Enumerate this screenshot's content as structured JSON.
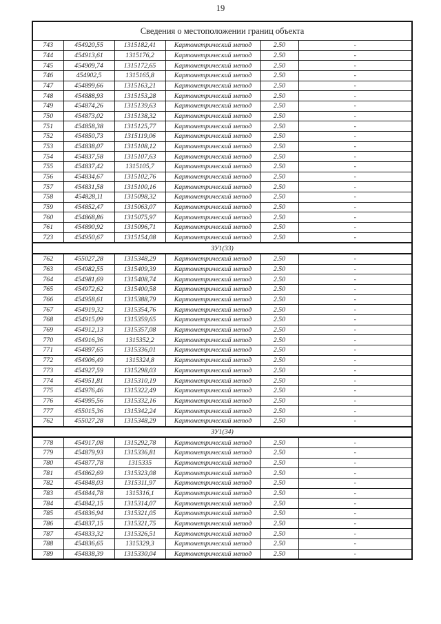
{
  "page": {
    "number": "19"
  },
  "table": {
    "title": "Сведения о местоположении границ объекта",
    "defaults": {
      "method": "Картометрический метод",
      "accuracy": "2.50",
      "description": "-"
    },
    "rows": [
      [
        "743",
        "454920,55",
        "1315182,41"
      ],
      [
        "744",
        "454913,61",
        "1315176,2"
      ],
      [
        "745",
        "454909,74",
        "1315172,65"
      ],
      [
        "746",
        "454902,5",
        "1315165,8"
      ],
      [
        "747",
        "454899,66",
        "1315163,21"
      ],
      [
        "748",
        "454888,93",
        "1315153,28"
      ],
      [
        "749",
        "454874,26",
        "1315139,63"
      ],
      [
        "750",
        "454873,02",
        "1315138,32"
      ],
      [
        "751",
        "454858,38",
        "1315125,77"
      ],
      [
        "752",
        "454850,73",
        "1315119,06"
      ],
      [
        "753",
        "454838,07",
        "1315108,12"
      ],
      [
        "754",
        "454837,58",
        "1315107,63"
      ],
      [
        "755",
        "454837,42",
        "1315105,7"
      ],
      [
        "756",
        "454834,67",
        "1315102,76"
      ],
      [
        "757",
        "454831,58",
        "1315100,16"
      ],
      [
        "758",
        "454828,11",
        "1315098,32"
      ],
      [
        "759",
        "454852,47",
        "1315063,07"
      ],
      [
        "760",
        "454868,86",
        "1315075,97"
      ],
      [
        "761",
        "454890,92",
        "1315096,71"
      ],
      [
        "723",
        "454950,67",
        "1315154,08"
      ],
      {
        "section": "ЗУ1(33)"
      },
      [
        "762",
        "455027,28",
        "1315348,29"
      ],
      [
        "763",
        "454982,55",
        "1315409,39"
      ],
      [
        "764",
        "454981,69",
        "1315408,74"
      ],
      [
        "765",
        "454972,62",
        "1315400,58"
      ],
      [
        "766",
        "454958,61",
        "1315388,79"
      ],
      [
        "767",
        "454919,32",
        "1315354,76"
      ],
      [
        "768",
        "454915,09",
        "1315359,65"
      ],
      [
        "769",
        "454912,13",
        "1315357,08"
      ],
      [
        "770",
        "454916,36",
        "1315352,2"
      ],
      [
        "771",
        "454897,65",
        "1315336,01"
      ],
      [
        "772",
        "454906,49",
        "1315324,8"
      ],
      [
        "773",
        "454927,59",
        "1315298,03"
      ],
      [
        "774",
        "454951,81",
        "1315310,19"
      ],
      [
        "775",
        "454976,46",
        "1315322,49"
      ],
      [
        "776",
        "454995,56",
        "1315332,16"
      ],
      [
        "777",
        "455015,36",
        "1315342,24"
      ],
      [
        "762",
        "455027,28",
        "1315348,29"
      ],
      {
        "section": "ЗУ1(34)"
      },
      [
        "778",
        "454917,08",
        "1315292,78"
      ],
      [
        "779",
        "454879,93",
        "1315336,81"
      ],
      [
        "780",
        "454877,78",
        "1315335"
      ],
      [
        "781",
        "454862,69",
        "1315323,08"
      ],
      [
        "782",
        "454848,03",
        "1315311,97"
      ],
      [
        "783",
        "454844,78",
        "1315316,1"
      ],
      [
        "784",
        "454842,15",
        "1315314,07"
      ],
      [
        "785",
        "454836,94",
        "1315321,05"
      ],
      [
        "786",
        "454837,15",
        "1315321,75"
      ],
      [
        "787",
        "454833,32",
        "1315326,51"
      ],
      [
        "788",
        "454836,65",
        "1315329,3"
      ],
      [
        "789",
        "454838,39",
        "1315330,04"
      ]
    ]
  }
}
